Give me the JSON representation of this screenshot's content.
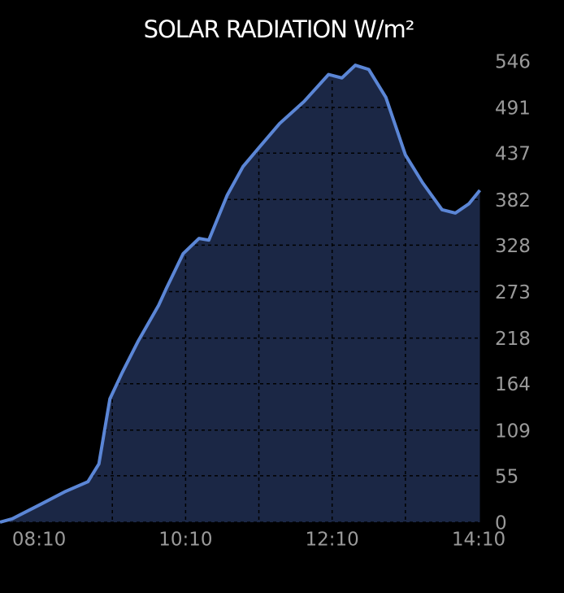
{
  "chart_data": {
    "type": "area",
    "title": "SOLAR RADIATION W/m²",
    "x": [
      458,
      468,
      491,
      511,
      530,
      539,
      548,
      558,
      571,
      588,
      594,
      608,
      621,
      629,
      644,
      657,
      671,
      687,
      707,
      727,
      738,
      749,
      760,
      774,
      790,
      804,
      820,
      831,
      842,
      851
    ],
    "values": [
      0,
      4,
      21,
      36,
      48,
      69,
      146,
      177,
      214,
      257,
      276,
      318,
      336,
      334,
      387,
      421,
      445,
      472,
      498,
      530,
      526,
      541,
      536,
      503,
      435,
      402,
      370,
      366,
      377,
      393
    ],
    "color": "#5b86d6",
    "fill": "#1b2745",
    "xlim": [
      458,
      852
    ],
    "xticks": [
      {
        "value": 490,
        "label": "08:10"
      },
      {
        "value": 610,
        "label": "10:10"
      },
      {
        "value": 730,
        "label": "12:10"
      },
      {
        "value": 850,
        "label": "14:10"
      }
    ],
    "xgrid": [
      550,
      610,
      670,
      730,
      790
    ],
    "ylim": [
      0,
      546
    ],
    "yticks": [
      0,
      55,
      109,
      164,
      218,
      273,
      328,
      382,
      437,
      491,
      546
    ],
    "grid": true
  }
}
